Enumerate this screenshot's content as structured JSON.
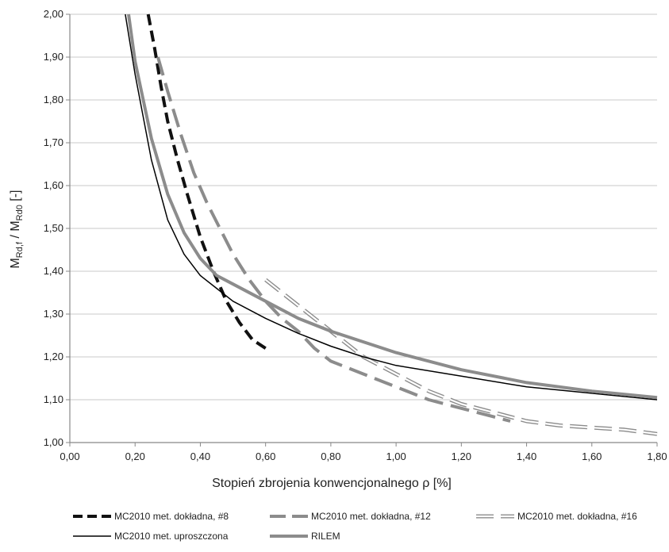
{
  "chart_data": {
    "type": "line",
    "title": "",
    "xlabel": "Stopień zbrojenia konwencjonalnego ρ [%]",
    "ylabel": {
      "prefix": "M",
      "sub1": "Rd,f",
      "middle": " / M",
      "sub2": "Rd0",
      "suffix": " [-]"
    },
    "xlim": [
      0,
      1.8
    ],
    "ylim": [
      1.0,
      2.0
    ],
    "x_ticks": [
      0,
      0.2,
      0.4,
      0.6,
      0.8,
      1.0,
      1.2,
      1.4,
      1.6,
      1.8
    ],
    "x_tick_labels": [
      "0,00",
      "0,20",
      "0,40",
      "0,60",
      "0,80",
      "1,00",
      "1,20",
      "1,40",
      "1,60",
      "1,80"
    ],
    "y_ticks": [
      1.0,
      1.1,
      1.2,
      1.3,
      1.4,
      1.5,
      1.6,
      1.7,
      1.8,
      1.9,
      2.0
    ],
    "y_tick_labels": [
      "1,00",
      "1,10",
      "1,20",
      "1,30",
      "1,40",
      "1,50",
      "1,60",
      "1,70",
      "1,80",
      "1,90",
      "2,00"
    ],
    "grid": "horizontal",
    "legend_position": "bottom",
    "series": [
      {
        "name": "MC2010 met. dokładna, #8",
        "color": "#111111",
        "style": "dash-bold",
        "x": [
          0.24,
          0.26,
          0.28,
          0.3,
          0.33,
          0.36,
          0.4,
          0.44,
          0.48,
          0.52,
          0.56,
          0.6
        ],
        "y": [
          2.0,
          1.92,
          1.83,
          1.75,
          1.66,
          1.58,
          1.48,
          1.4,
          1.33,
          1.28,
          1.24,
          1.22
        ]
      },
      {
        "name": "MC2010 met. dokładna, #12",
        "color": "#8c8c8c",
        "style": "dash-long",
        "x": [
          0.27,
          0.3,
          0.34,
          0.38,
          0.42,
          0.46,
          0.5,
          0.55,
          0.6,
          0.65,
          0.7,
          0.75,
          0.8,
          0.9,
          1.0,
          1.1,
          1.2,
          1.3,
          1.35
        ],
        "y": [
          1.9,
          1.82,
          1.72,
          1.63,
          1.56,
          1.5,
          1.44,
          1.38,
          1.33,
          1.29,
          1.26,
          1.22,
          1.19,
          1.16,
          1.13,
          1.1,
          1.08,
          1.06,
          1.05
        ]
      },
      {
        "name": "MC2010 met. dokładna, #16",
        "color": "#b8b8b8",
        "style": "dash-hollow",
        "x": [
          0.6,
          0.65,
          0.7,
          0.75,
          0.8,
          0.85,
          0.9,
          1.0,
          1.1,
          1.2,
          1.3,
          1.4,
          1.5,
          1.6,
          1.7,
          1.8
        ],
        "y": [
          1.38,
          1.35,
          1.32,
          1.29,
          1.26,
          1.23,
          1.2,
          1.16,
          1.12,
          1.09,
          1.07,
          1.05,
          1.04,
          1.035,
          1.03,
          1.02
        ]
      },
      {
        "name": "MC2010 met. uproszczona",
        "color": "#000000",
        "style": "solid-thin",
        "x": [
          0.17,
          0.2,
          0.25,
          0.3,
          0.35,
          0.4,
          0.45,
          0.5,
          0.6,
          0.7,
          0.8,
          0.9,
          1.0,
          1.2,
          1.4,
          1.6,
          1.8
        ],
        "y": [
          2.0,
          1.86,
          1.66,
          1.52,
          1.44,
          1.39,
          1.36,
          1.33,
          1.29,
          1.255,
          1.225,
          1.2,
          1.18,
          1.155,
          1.13,
          1.115,
          1.1
        ]
      },
      {
        "name": "RILEM",
        "color": "#8c8c8c",
        "style": "solid-bold",
        "x": [
          0.18,
          0.2,
          0.25,
          0.3,
          0.35,
          0.4,
          0.45,
          0.5,
          0.6,
          0.7,
          0.8,
          0.9,
          1.0,
          1.2,
          1.4,
          1.6,
          1.8
        ],
        "y": [
          2.0,
          1.89,
          1.71,
          1.58,
          1.49,
          1.43,
          1.39,
          1.37,
          1.33,
          1.29,
          1.26,
          1.235,
          1.21,
          1.17,
          1.14,
          1.12,
          1.105
        ]
      }
    ]
  }
}
